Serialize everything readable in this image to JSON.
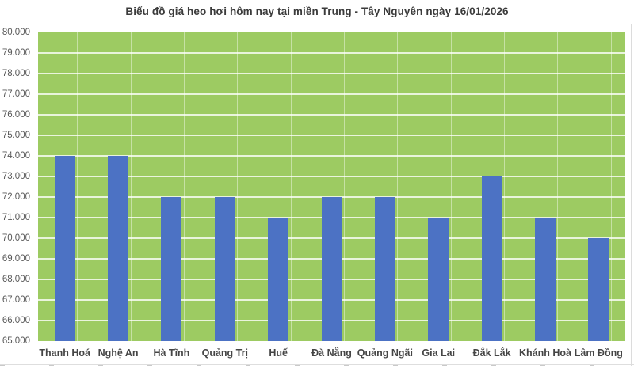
{
  "chart_data": {
    "type": "bar",
    "title": "Biểu đồ giá heo hơi hôm nay tại miền Trung - Tây Nguyên ngày 16/01/2026",
    "xlabel": "",
    "ylabel": "",
    "categories": [
      "Thanh Hoá",
      "Nghệ An",
      "Hà Tĩnh",
      "Quảng Trị",
      "Huế",
      "Đà Nẵng",
      "Quảng Ngãi",
      "Gia Lai",
      "Đắk Lắk",
      "Khánh Hoà",
      "Lâm Đồng"
    ],
    "values": [
      74000,
      74000,
      72000,
      72000,
      71000,
      72000,
      72000,
      71000,
      73000,
      71000,
      70000
    ],
    "ylim": [
      65000,
      80000
    ],
    "ytick_step": 1000,
    "ytick_labels": [
      "80.000",
      "79.000",
      "78.000",
      "77.000",
      "76.000",
      "75.000",
      "74.000",
      "73.000",
      "72.000",
      "71.000",
      "70.000",
      "69.000",
      "68.000",
      "67.000",
      "66.000",
      "65.000"
    ],
    "grid": true,
    "legend": false,
    "colors": {
      "bar": "#4C72C4",
      "plot_background": "#9DCB62",
      "gridline": "#E3EAD9",
      "title_text": "#3B3B3B",
      "axis_text": "#595959",
      "category_text": "#454545"
    }
  }
}
